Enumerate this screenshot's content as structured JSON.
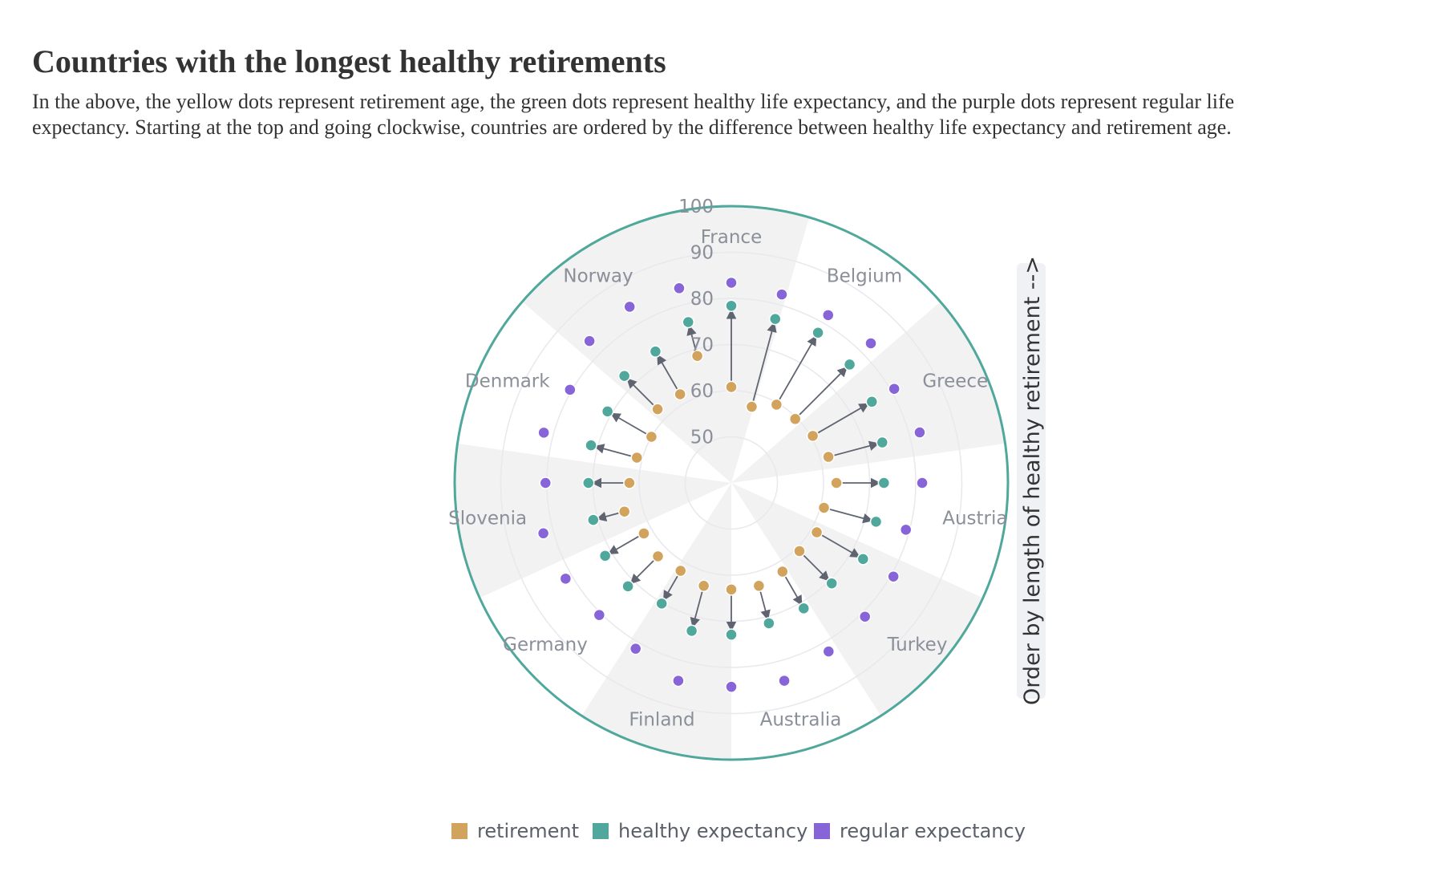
{
  "chart_data": {
    "type": "polar-dot-arrow",
    "title": "Countries with the longest healthy retirements",
    "subtitle_lines": [
      "In the above, the yellow dots represent retirement age, the green dots represent healthy life expectancy, and the purple dots represent regular life",
      "expectancy. Starting at the top and going clockwise, countries are ordered by the difference between healthy life expectancy and retirement age."
    ],
    "radial_axis": {
      "min": 40,
      "max": 100,
      "ticks": [
        50,
        60,
        70,
        80,
        90,
        100
      ]
    },
    "side_label": "Order by length of healthy retirement -->",
    "country_labels": [
      "France",
      "Belgium",
      "Greece",
      "Austria",
      "Turkey",
      "Australia",
      "Finland",
      "Germany",
      "Slovenia",
      "Denmark",
      "Norway"
    ],
    "series": [
      {
        "name": "retirement",
        "color": "#d2a35c",
        "values": [
          60.8,
          57.1,
          59.6,
          59.6,
          60.4,
          61.8,
          62.8,
          60.8,
          61.4,
          60.9,
          62.2,
          63.1,
          63.1,
          63.1,
          62.0,
          62.5,
          61.9,
          64.0,
          62.1,
          61.2,
          60.0,
          62.6,
          62.2,
          68.5
        ]
      },
      {
        "name": "healthy expectancy",
        "color": "#4fa89b",
        "values": [
          78.4,
          76.8,
          77.6,
          76.3,
          75.2,
          73.9,
          73.1,
          72.5,
          73.0,
          70.8,
          71.4,
          71.5,
          72.9,
          73.2,
          70.2,
          71.7,
          71.6,
          71.0,
          71.0,
          71.5,
          71.0,
          72.8,
          72.9,
          76.1
        ]
      },
      {
        "name": "regular expectancy",
        "color": "#8764d8",
        "values": [
          83.4,
          82.3,
          82.0,
          82.8,
          80.8,
          82.3,
          81.4,
          79.2,
          80.6,
          81.0,
          82.2,
          84.4,
          84.2,
          84.4,
          81.5,
          80.5,
          81.5,
          82.2,
          80.3,
          82.1,
          80.4,
          83.5,
          84.1,
          83.7
        ]
      }
    ],
    "legend": [
      {
        "label": "retirement",
        "color": "#d2a35c"
      },
      {
        "label": "healthy expectancy",
        "color": "#4fa89b"
      },
      {
        "label": "regular expectancy",
        "color": "#8764d8"
      }
    ],
    "colors": {
      "outer_ring": "#4fa89b",
      "sector_shade": "#f2f2f2",
      "arrow": "#5f6470",
      "grid": "#e8e8ee",
      "label": "#8a8f99"
    },
    "legend_position": "bottom"
  }
}
